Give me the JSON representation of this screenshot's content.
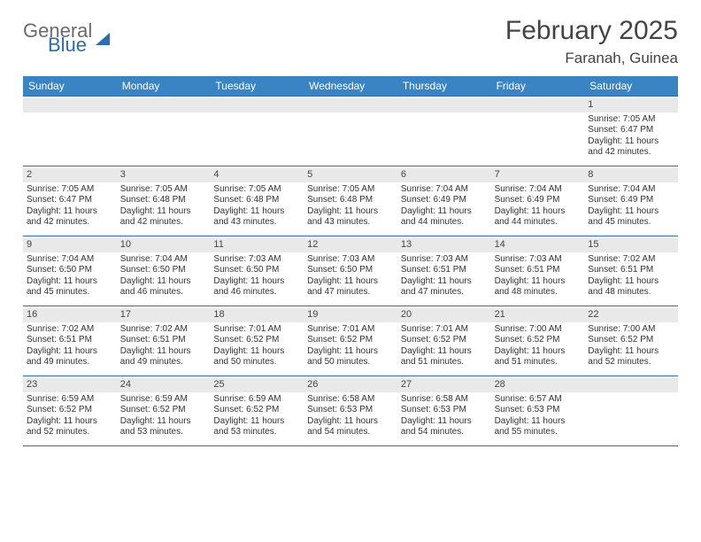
{
  "brand": {
    "general": "General",
    "blue": "Blue"
  },
  "header": {
    "month_title": "February 2025",
    "location": "Faranah, Guinea"
  },
  "colors": {
    "header_bg": "#3b84c4",
    "rule": "#2a6db0",
    "band_bg": "#e9e9e9",
    "text": "#333333",
    "title_text": "#444444"
  },
  "calendar": {
    "day_names": [
      "Sunday",
      "Monday",
      "Tuesday",
      "Wednesday",
      "Thursday",
      "Friday",
      "Saturday"
    ],
    "weeks": [
      [
        {
          "n": "",
          "empty": true
        },
        {
          "n": "",
          "empty": true
        },
        {
          "n": "",
          "empty": true
        },
        {
          "n": "",
          "empty": true
        },
        {
          "n": "",
          "empty": true
        },
        {
          "n": "",
          "empty": true
        },
        {
          "n": "1",
          "sunrise": "Sunrise: 7:05 AM",
          "sunset": "Sunset: 6:47 PM",
          "daylight": "Daylight: 11 hours and 42 minutes."
        }
      ],
      [
        {
          "n": "2",
          "sunrise": "Sunrise: 7:05 AM",
          "sunset": "Sunset: 6:47 PM",
          "daylight": "Daylight: 11 hours and 42 minutes."
        },
        {
          "n": "3",
          "sunrise": "Sunrise: 7:05 AM",
          "sunset": "Sunset: 6:48 PM",
          "daylight": "Daylight: 11 hours and 42 minutes."
        },
        {
          "n": "4",
          "sunrise": "Sunrise: 7:05 AM",
          "sunset": "Sunset: 6:48 PM",
          "daylight": "Daylight: 11 hours and 43 minutes."
        },
        {
          "n": "5",
          "sunrise": "Sunrise: 7:05 AM",
          "sunset": "Sunset: 6:48 PM",
          "daylight": "Daylight: 11 hours and 43 minutes."
        },
        {
          "n": "6",
          "sunrise": "Sunrise: 7:04 AM",
          "sunset": "Sunset: 6:49 PM",
          "daylight": "Daylight: 11 hours and 44 minutes."
        },
        {
          "n": "7",
          "sunrise": "Sunrise: 7:04 AM",
          "sunset": "Sunset: 6:49 PM",
          "daylight": "Daylight: 11 hours and 44 minutes."
        },
        {
          "n": "8",
          "sunrise": "Sunrise: 7:04 AM",
          "sunset": "Sunset: 6:49 PM",
          "daylight": "Daylight: 11 hours and 45 minutes."
        }
      ],
      [
        {
          "n": "9",
          "sunrise": "Sunrise: 7:04 AM",
          "sunset": "Sunset: 6:50 PM",
          "daylight": "Daylight: 11 hours and 45 minutes."
        },
        {
          "n": "10",
          "sunrise": "Sunrise: 7:04 AM",
          "sunset": "Sunset: 6:50 PM",
          "daylight": "Daylight: 11 hours and 46 minutes."
        },
        {
          "n": "11",
          "sunrise": "Sunrise: 7:03 AM",
          "sunset": "Sunset: 6:50 PM",
          "daylight": "Daylight: 11 hours and 46 minutes."
        },
        {
          "n": "12",
          "sunrise": "Sunrise: 7:03 AM",
          "sunset": "Sunset: 6:50 PM",
          "daylight": "Daylight: 11 hours and 47 minutes."
        },
        {
          "n": "13",
          "sunrise": "Sunrise: 7:03 AM",
          "sunset": "Sunset: 6:51 PM",
          "daylight": "Daylight: 11 hours and 47 minutes."
        },
        {
          "n": "14",
          "sunrise": "Sunrise: 7:03 AM",
          "sunset": "Sunset: 6:51 PM",
          "daylight": "Daylight: 11 hours and 48 minutes."
        },
        {
          "n": "15",
          "sunrise": "Sunrise: 7:02 AM",
          "sunset": "Sunset: 6:51 PM",
          "daylight": "Daylight: 11 hours and 48 minutes."
        }
      ],
      [
        {
          "n": "16",
          "sunrise": "Sunrise: 7:02 AM",
          "sunset": "Sunset: 6:51 PM",
          "daylight": "Daylight: 11 hours and 49 minutes."
        },
        {
          "n": "17",
          "sunrise": "Sunrise: 7:02 AM",
          "sunset": "Sunset: 6:51 PM",
          "daylight": "Daylight: 11 hours and 49 minutes."
        },
        {
          "n": "18",
          "sunrise": "Sunrise: 7:01 AM",
          "sunset": "Sunset: 6:52 PM",
          "daylight": "Daylight: 11 hours and 50 minutes."
        },
        {
          "n": "19",
          "sunrise": "Sunrise: 7:01 AM",
          "sunset": "Sunset: 6:52 PM",
          "daylight": "Daylight: 11 hours and 50 minutes."
        },
        {
          "n": "20",
          "sunrise": "Sunrise: 7:01 AM",
          "sunset": "Sunset: 6:52 PM",
          "daylight": "Daylight: 11 hours and 51 minutes."
        },
        {
          "n": "21",
          "sunrise": "Sunrise: 7:00 AM",
          "sunset": "Sunset: 6:52 PM",
          "daylight": "Daylight: 11 hours and 51 minutes."
        },
        {
          "n": "22",
          "sunrise": "Sunrise: 7:00 AM",
          "sunset": "Sunset: 6:52 PM",
          "daylight": "Daylight: 11 hours and 52 minutes."
        }
      ],
      [
        {
          "n": "23",
          "sunrise": "Sunrise: 6:59 AM",
          "sunset": "Sunset: 6:52 PM",
          "daylight": "Daylight: 11 hours and 52 minutes."
        },
        {
          "n": "24",
          "sunrise": "Sunrise: 6:59 AM",
          "sunset": "Sunset: 6:52 PM",
          "daylight": "Daylight: 11 hours and 53 minutes."
        },
        {
          "n": "25",
          "sunrise": "Sunrise: 6:59 AM",
          "sunset": "Sunset: 6:52 PM",
          "daylight": "Daylight: 11 hours and 53 minutes."
        },
        {
          "n": "26",
          "sunrise": "Sunrise: 6:58 AM",
          "sunset": "Sunset: 6:53 PM",
          "daylight": "Daylight: 11 hours and 54 minutes."
        },
        {
          "n": "27",
          "sunrise": "Sunrise: 6:58 AM",
          "sunset": "Sunset: 6:53 PM",
          "daylight": "Daylight: 11 hours and 54 minutes."
        },
        {
          "n": "28",
          "sunrise": "Sunrise: 6:57 AM",
          "sunset": "Sunset: 6:53 PM",
          "daylight": "Daylight: 11 hours and 55 minutes."
        },
        {
          "n": "",
          "empty": true
        }
      ]
    ]
  }
}
